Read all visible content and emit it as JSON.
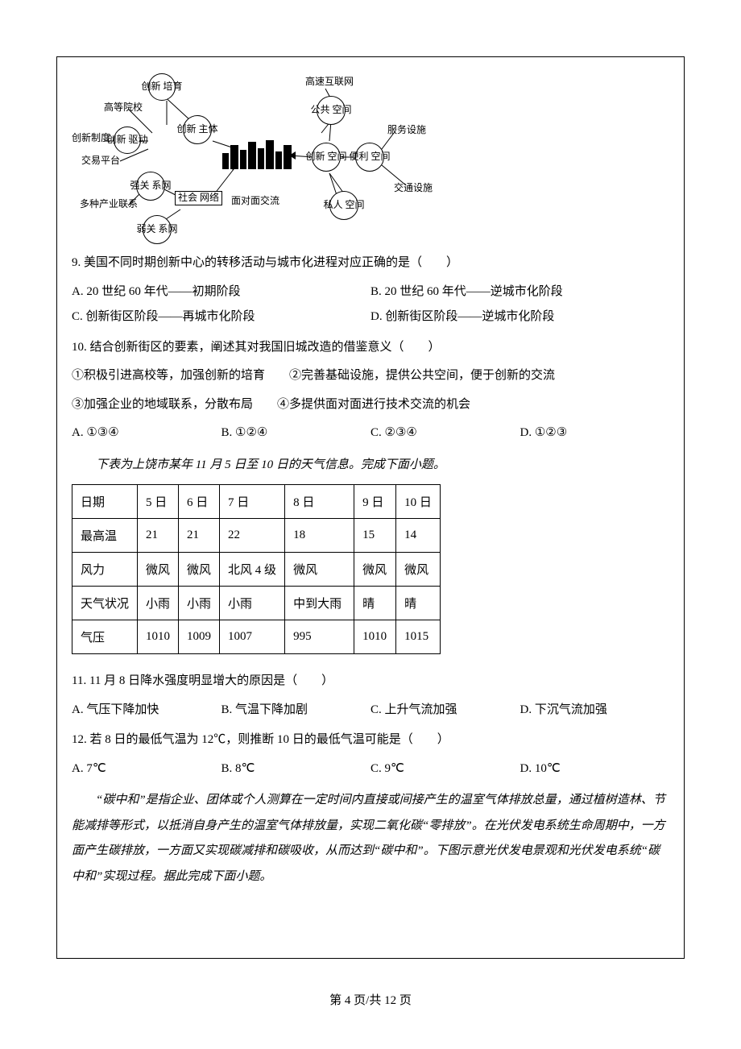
{
  "diagram": {
    "nodes": {
      "chuangxin_peiyu": "创新\n培育",
      "gaodeng_yuanxiao": "高等院校",
      "chuangxin_zhidu": "创新制度",
      "chuangxin_qudong": "创新\n驱动",
      "jiaoyi_pingtai": "交易平台",
      "chuangxin_zhuti": "创新\n主体",
      "qiang_guanxi": "强关\n系网",
      "duozhong_chanye": "多种产业联系",
      "shehui_wangluo": "社会\n网络",
      "ruo_guanxi": "弱关\n系网",
      "mianduimian": "面对面交流",
      "gaosu_hulian": "高速互联网",
      "gonggong_kongjian": "公共\n空间",
      "chuangxin_kongjian": "创新\n空间",
      "bianli_kongjian": "便利\n空间",
      "siren_kongjian": "私人\n空间",
      "fuwu_sheshi": "服务设施",
      "jiaotong_sheshi": "交通设施"
    }
  },
  "q9": {
    "text": "9. 美国不同时期创新中心的转移活动与城市化进程对应正确的是（　　）",
    "A": "A. 20 世纪 60 年代——初期阶段",
    "B": "B. 20 世纪 60 年代——逆城市化阶段",
    "C": "C. 创新街区阶段——再城市化阶段",
    "D": "D. 创新街区阶段——逆城市化阶段"
  },
  "q10": {
    "text": "10. 结合创新街区的要素，阐述其对我国旧城改造的借鉴意义（　　）",
    "line1": "①积极引进高校等，加强创新的培育　　②完善基础设施，提供公共空间，便于创新的交流",
    "line2": "③加强企业的地域联系，分散布局　　④多提供面对面进行技术交流的机会",
    "A": "A. ①③④",
    "B": "B. ①②④",
    "C": "C. ②③④",
    "D": "D. ①②③"
  },
  "weather_stem": "下表为上饶市某年 11 月 5 日至 10 日的天气信息。完成下面小题。",
  "weather": {
    "headers": [
      "日期",
      "5 日",
      "6 日",
      "7 日",
      "8 日",
      "9 日",
      "10 日"
    ],
    "rows": [
      [
        "最高温",
        "21",
        "21",
        "22",
        "18",
        "15",
        "14"
      ],
      [
        "风力",
        "微风",
        "微风",
        "北风 4 级",
        "微风",
        "微风",
        "微风"
      ],
      [
        "天气状况",
        "小雨",
        "小雨",
        "小雨",
        "中到大雨",
        "晴",
        "晴"
      ],
      [
        "气压",
        "1010",
        "1009",
        "1007",
        "995",
        "1010",
        "1015"
      ]
    ]
  },
  "q11": {
    "text": "11. 11 月 8 日降水强度明显增大的原因是（　　）",
    "A": "A. 气压下降加快",
    "B": "B. 气温下降加剧",
    "C": "C. 上升气流加强",
    "D": "D. 下沉气流加强"
  },
  "q12": {
    "text": "12. 若 8 日的最低气温为 12℃，则推断 10 日的最低气温可能是（　　）",
    "A": "A. 7℃",
    "B": "B. 8℃",
    "C": "C. 9℃",
    "D": "D. 10℃"
  },
  "carbon_stem": "“碳中和”是指企业、团体或个人测算在一定时间内直接或间接产生的温室气体排放总量，通过植树造林、节能减排等形式，以抵消自身产生的温室气体排放量，实现二氧化碳“零排放”。在光伏发电系统生命周期中，一方面产生碳排放，一方面又实现碳减排和碳吸收，从而达到“碳中和”。下图示意光伏发电景观和光伏发电系统“碳中和”实现过程。据此完成下面小题。",
  "footer": "第 4 页/共 12 页"
}
